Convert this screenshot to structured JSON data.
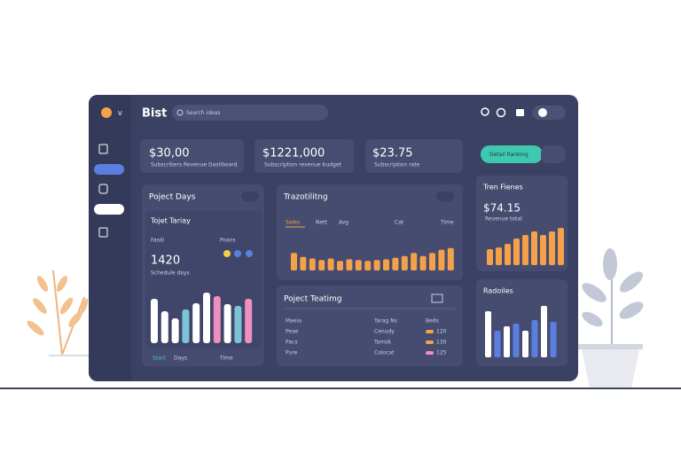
{
  "header": {
    "title": "Bist",
    "search": "Search ideas",
    "user": "V"
  },
  "stats": [
    {
      "value": "$30,00",
      "label": "Subscribers Revenue Dashboard"
    },
    {
      "value": "$1221,000",
      "label": "Subscription revenue budget"
    },
    {
      "value": "$23.75",
      "label": "Subscription rate"
    }
  ],
  "button": "Detail Ranking",
  "project_days": {
    "title": "Poject Days",
    "subtitle": "Tojet Tariay",
    "label_left": "Fasdi",
    "label_right": "Poans",
    "value": "1420",
    "caption": "Schedule days",
    "bars": [
      50,
      36,
      28,
      38,
      45,
      57,
      53,
      44,
      42,
      50
    ],
    "colors": [
      "#ffffff",
      "#ffffff",
      "#ffffff",
      "#7cc3d6",
      "#ffffff",
      "#ffffff",
      "#f08fbf",
      "#ffffff",
      "#7cc3d6",
      "#f08fbf"
    ],
    "footer": [
      "Start",
      "Days",
      "Time"
    ]
  },
  "tracking": {
    "title": "Trazotilitng",
    "tabs": [
      "Sales",
      "Nett",
      "Avg"
    ],
    "right_tabs": [
      "Cat",
      "Time"
    ],
    "color": "#f4a14a",
    "bars": [
      22,
      17,
      15,
      13,
      15,
      12,
      14,
      13,
      12,
      13,
      14,
      16,
      18,
      22,
      18,
      22,
      26,
      28
    ]
  },
  "project_testing": {
    "title": "Poject Teatimg",
    "columns": [
      "Maeia",
      "Tarag Ns",
      "Beds"
    ],
    "rows": [
      [
        "Peae",
        "Cenudy",
        "120"
      ],
      [
        "Pacs",
        "Tarnsk",
        "130"
      ],
      [
        "Pure",
        "Colocat",
        "125"
      ]
    ],
    "pill_colors": [
      "#f4a14a",
      "#f4a14a",
      "#f08fbf"
    ]
  },
  "trend": {
    "title": "Tren Fienes",
    "value": "$74.15",
    "caption": "Revenue total",
    "color": "#f4a14a",
    "bars": [
      18,
      20,
      24,
      30,
      34,
      38,
      34,
      38,
      42
    ]
  },
  "results": {
    "title": "Radoiles",
    "colors": [
      "#ffffff",
      "#5b7fe0"
    ],
    "bars": [
      52,
      30,
      35,
      38,
      30,
      42,
      58,
      40
    ]
  }
}
